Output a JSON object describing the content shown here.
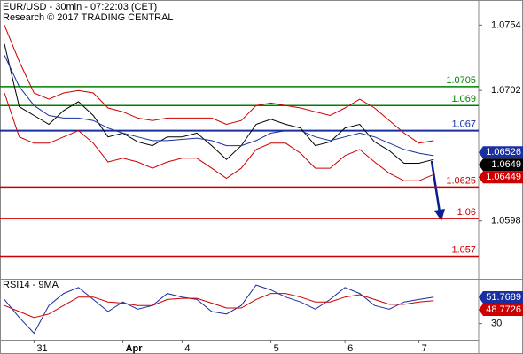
{
  "chart_data": [
    {
      "type": "line",
      "title": "EUR/USD - 30min - 07:22:03 (CET)",
      "subtitle": "Research © 2017 TRADING CENTRAL",
      "ylim": [
        1.0552,
        1.0774
      ],
      "yticks": [
        1.0754,
        1.0702,
        1.0598
      ],
      "series": [
        {
          "color": "#000000",
          "values": [
            1.0739,
            1.0689,
            1.0682,
            1.0675,
            1.0686,
            1.0693,
            1.0682,
            1.0665,
            1.0668,
            1.0661,
            1.0658,
            1.0665,
            1.0665,
            1.0668,
            1.0658,
            1.0647,
            1.0658,
            1.0675,
            1.0679,
            1.0675,
            1.0672,
            1.0658,
            1.0661,
            1.0672,
            1.0675,
            1.0661,
            1.0654,
            1.0644,
            1.0644,
            1.0647
          ]
        },
        {
          "color": "#cc0000",
          "values": [
            1.0754,
            1.0725,
            1.07,
            1.0695,
            1.07,
            1.0702,
            1.07,
            1.0688,
            1.0685,
            1.068,
            1.0678,
            1.068,
            1.068,
            1.068,
            1.068,
            1.0675,
            1.0678,
            1.069,
            1.0692,
            1.069,
            1.0688,
            1.0685,
            1.0682,
            1.0688,
            1.0695,
            1.0688,
            1.0678,
            1.0668,
            1.066,
            1.0662
          ]
        },
        {
          "color": "#cc0000",
          "values": [
            1.07,
            1.0665,
            1.066,
            1.066,
            1.0665,
            1.067,
            1.066,
            1.0645,
            1.0648,
            1.0645,
            1.064,
            1.0645,
            1.0648,
            1.0648,
            1.064,
            1.0632,
            1.064,
            1.0655,
            1.066,
            1.066,
            1.0652,
            1.064,
            1.064,
            1.065,
            1.0655,
            1.0645,
            1.0636,
            1.063,
            1.063,
            1.0635
          ]
        },
        {
          "color": "#1a2fa0",
          "values": [
            1.073,
            1.0705,
            1.069,
            1.0682,
            1.068,
            1.068,
            1.0678,
            1.0672,
            1.0668,
            1.0665,
            1.0662,
            1.0662,
            1.0663,
            1.0664,
            1.0662,
            1.0658,
            1.0658,
            1.0662,
            1.0668,
            1.067,
            1.067,
            1.0665,
            1.0662,
            1.0665,
            1.0668,
            1.0665,
            1.066,
            1.0655,
            1.0652,
            1.065
          ]
        }
      ],
      "levels": [
        {
          "value": 1.0705,
          "color": "#008000"
        },
        {
          "value": 1.069,
          "color": "#008000"
        },
        {
          "value": 1.067,
          "color": "#1a2fa0"
        },
        {
          "value": 1.0625,
          "color": "#cc0000"
        },
        {
          "value": 1.06,
          "color": "#cc0000"
        },
        {
          "value": 1.057,
          "color": "#cc0000"
        }
      ],
      "price_labels": [
        {
          "value": 1.06526,
          "color": "#1a2fa0"
        },
        {
          "value": 1.0649,
          "color": "#000000"
        },
        {
          "value": 1.06449,
          "color": "#cc0000"
        }
      ]
    },
    {
      "type": "line",
      "title": "RSI14 - 9MA",
      "ylim": [
        16.5,
        66.5
      ],
      "yticks": [
        30
      ],
      "categories": [
        null,
        null,
        "31",
        null,
        null,
        null,
        null,
        null,
        "Apr",
        null,
        null,
        null,
        "4",
        null,
        null,
        null,
        null,
        null,
        "5",
        null,
        null,
        null,
        null,
        "6",
        null,
        null,
        null,
        null,
        "7",
        null
      ],
      "series": [
        {
          "color": "#1a2fa0",
          "values": [
            50,
            35,
            22,
            45,
            55,
            60,
            50,
            40,
            48,
            42,
            45,
            55,
            52,
            50,
            40,
            38,
            45,
            62,
            58,
            52,
            48,
            42,
            50,
            60,
            55,
            45,
            42,
            48,
            50,
            52
          ]
        },
        {
          "color": "#cc0000",
          "values": [
            45,
            40,
            35,
            38,
            45,
            52,
            52,
            48,
            47,
            45,
            45,
            50,
            51,
            51,
            47,
            43,
            43,
            50,
            55,
            55,
            52,
            48,
            48,
            52,
            54,
            50,
            46,
            46,
            48,
            49
          ]
        }
      ],
      "price_labels": [
        {
          "value": 51.7689,
          "color": "#1a2fa0"
        },
        {
          "value": 48.7726,
          "color": "#cc0000"
        }
      ]
    }
  ]
}
